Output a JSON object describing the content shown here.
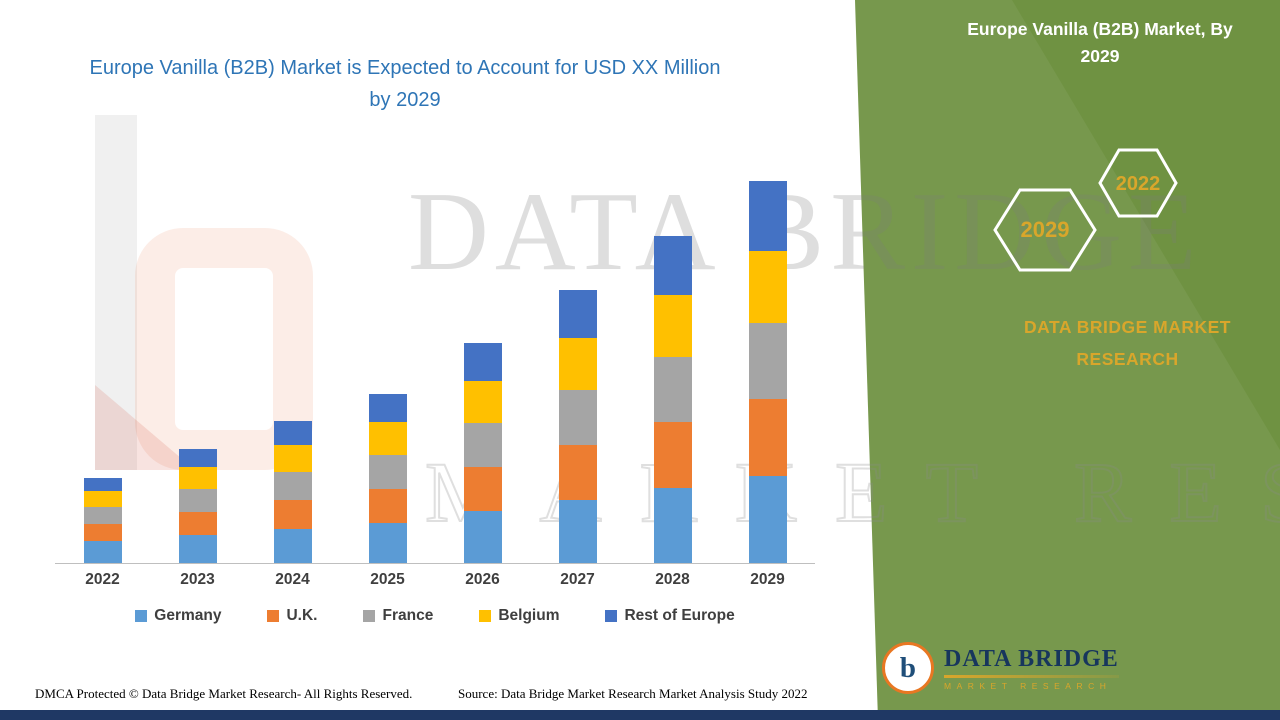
{
  "colors": {
    "green": "#6F9242",
    "navy": "#1F3864",
    "gold": "#D9A62B",
    "title-blue": "#2E75B6"
  },
  "main": {
    "title": "Europe Vanilla (B2B) Market is Expected to Account for USD XX Million by 2029"
  },
  "panel": {
    "title": "Europe Vanilla (B2B) Market, By 2029",
    "badge_2022": "2022",
    "badge_2029": "2029",
    "brand": "DATA BRIDGE MARKET RESEARCH"
  },
  "watermark": {
    "line1": "DATA BRIDGE",
    "line2": "MARKET RESEARCH"
  },
  "logo": {
    "glyph": "b",
    "name": "DATA BRIDGE",
    "sub": "MARKET RESEARCH"
  },
  "footer": {
    "dmca": "DMCA Protected © Data Bridge Market Research- All Rights Reserved.",
    "source": "Source: Data Bridge Market Research Market Analysis Study 2022"
  },
  "chart_data": {
    "type": "bar",
    "stacked": true,
    "title": "Europe Vanilla (B2B) Market is Expected to Account for USD XX Million by 2029",
    "xlabel": "",
    "ylabel": "",
    "y_axis_visible": false,
    "grid": false,
    "legend_position": "bottom",
    "units": "relative height (no y-axis tick labels shown in image)",
    "categories": [
      "2022",
      "2023",
      "2024",
      "2025",
      "2026",
      "2027",
      "2028",
      "2029"
    ],
    "series": [
      {
        "name": "Germany",
        "color": "#5B9BD5",
        "values": [
          22,
          28,
          34,
          40,
          52,
          63,
          75,
          87
        ]
      },
      {
        "name": "U.K.",
        "color": "#ED7D31",
        "values": [
          17,
          23,
          29,
          34,
          44,
          55,
          66,
          77
        ]
      },
      {
        "name": "France",
        "color": "#A5A5A5",
        "values": [
          17,
          23,
          28,
          34,
          44,
          55,
          65,
          76
        ]
      },
      {
        "name": "Belgium",
        "color": "#FFC000",
        "values": [
          16,
          22,
          27,
          33,
          42,
          52,
          62,
          72
        ]
      },
      {
        "name": "Rest of Europe",
        "color": "#4472C4",
        "values": [
          13,
          18,
          24,
          28,
          38,
          48,
          59,
          70
        ]
      }
    ],
    "totals": [
      85,
      114,
      142,
      169,
      220,
      273,
      327,
      382
    ]
  }
}
